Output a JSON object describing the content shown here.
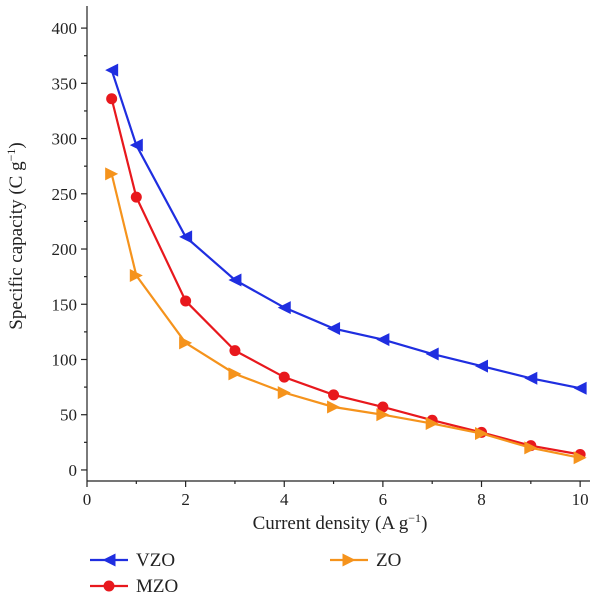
{
  "chart_data": {
    "type": "line",
    "xlabel": "Current density (A g",
    "xlabel_sup": "−1",
    "xlabel_end": ")",
    "ylabel": "Specific capacity (C g",
    "ylabel_sup": "−1",
    "ylabel_end": ")",
    "xlim": [
      0,
      10.2
    ],
    "ylim": [
      -10,
      420
    ],
    "xticks": [
      0,
      2,
      4,
      6,
      8,
      10
    ],
    "yticks": [
      0,
      50,
      100,
      150,
      200,
      250,
      300,
      350,
      400
    ],
    "grid": false,
    "legend_position": "bottom",
    "series": [
      {
        "name": "VZO",
        "color": "#1f2ee0",
        "marker": "triangle-left",
        "x": [
          0.5,
          1,
          2,
          3,
          4,
          5,
          6,
          7,
          8,
          9,
          10
        ],
        "y": [
          362,
          294,
          211,
          172,
          147,
          128,
          118,
          105,
          94,
          83,
          74
        ]
      },
      {
        "name": "MZO",
        "color": "#e8181d",
        "marker": "circle",
        "x": [
          0.5,
          1,
          2,
          3,
          4,
          5,
          6,
          7,
          8,
          9,
          10
        ],
        "y": [
          336,
          247,
          153,
          108,
          84,
          68,
          57,
          45,
          34,
          22,
          14
        ]
      },
      {
        "name": "ZO",
        "color": "#f5931c",
        "marker": "triangle-right",
        "x": [
          0.5,
          1,
          2,
          3,
          4,
          5,
          6,
          7,
          8,
          9,
          10
        ],
        "y": [
          268,
          176,
          115,
          87,
          70,
          57,
          50,
          42,
          33,
          20,
          11
        ]
      }
    ]
  }
}
